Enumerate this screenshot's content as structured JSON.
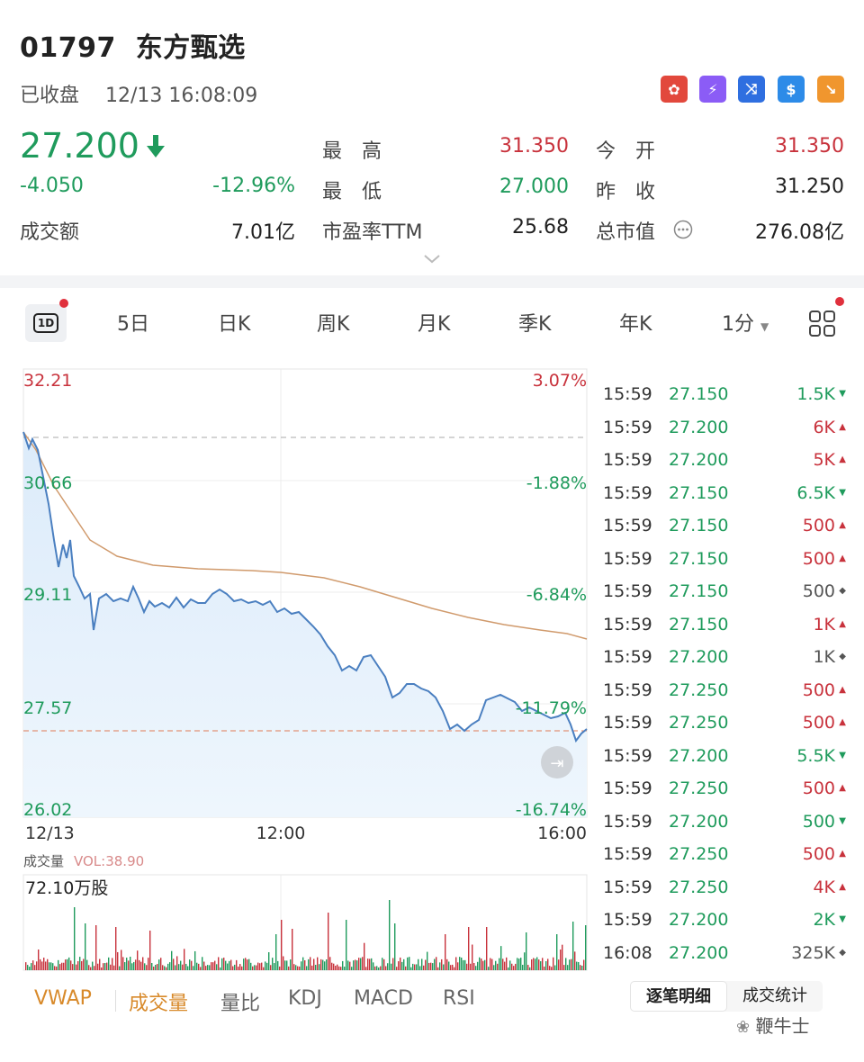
{
  "header": {
    "code": "01797",
    "name": "东方甄选",
    "status": "已收盘",
    "datetime": "12/13 16:08:09",
    "badges": [
      {
        "icon": "hk-flag-icon",
        "color": "#e2483c",
        "glyph": "✿"
      },
      {
        "icon": "level2-icon",
        "color": "#8b5cf6",
        "glyph": "⚡"
      },
      {
        "icon": "shuffle-icon",
        "color": "#2f6fe0",
        "glyph": "⤨"
      },
      {
        "icon": "dollar-icon",
        "color": "#2d8be8",
        "glyph": "$"
      },
      {
        "icon": "trend-down-icon",
        "color": "#f0962e",
        "glyph": "↘"
      }
    ]
  },
  "quote": {
    "price": "27.200",
    "change": "-4.050",
    "change_pct": "-12.96%",
    "turnover_label": "成交额",
    "turnover": "7.01亿",
    "high_label": "最　高",
    "high": "31.350",
    "low_label": "最　低",
    "low": "27.000",
    "pe_label": "市盈率TTM",
    "pe": "25.68",
    "open_label": "今　开",
    "open": "31.350",
    "prev_close_label": "昨　收",
    "prev_close": "31.250",
    "mcap_label": "总市值",
    "mcap": "276.08亿"
  },
  "tabs": [
    "5日",
    "日K",
    "周K",
    "月K",
    "季K",
    "年K",
    "1分"
  ],
  "tab_1d": "1D",
  "chart": {
    "left_ticks": [
      "32.21",
      "30.66",
      "29.11",
      "27.57",
      "26.02"
    ],
    "right_ticks": [
      "3.07%",
      "-1.88%",
      "-6.84%",
      "-11.79%",
      "-16.74%"
    ],
    "time_ticks": [
      "12/13",
      "12:00",
      "16:00"
    ],
    "volume_title": "成交量",
    "volume_label": "VOL:38.90",
    "volume_max": "72.10万股"
  },
  "ticks": [
    {
      "time": "15:59",
      "price": "27.150",
      "vol": "1.5K",
      "dir": "down"
    },
    {
      "time": "15:59",
      "price": "27.200",
      "vol": "6K",
      "dir": "up"
    },
    {
      "time": "15:59",
      "price": "27.200",
      "vol": "5K",
      "dir": "up"
    },
    {
      "time": "15:59",
      "price": "27.150",
      "vol": "6.5K",
      "dir": "down"
    },
    {
      "time": "15:59",
      "price": "27.150",
      "vol": "500",
      "dir": "up"
    },
    {
      "time": "15:59",
      "price": "27.150",
      "vol": "500",
      "dir": "up"
    },
    {
      "time": "15:59",
      "price": "27.150",
      "vol": "500",
      "dir": "neutral"
    },
    {
      "time": "15:59",
      "price": "27.150",
      "vol": "1K",
      "dir": "up"
    },
    {
      "time": "15:59",
      "price": "27.200",
      "vol": "1K",
      "dir": "neutral"
    },
    {
      "time": "15:59",
      "price": "27.250",
      "vol": "500",
      "dir": "up"
    },
    {
      "time": "15:59",
      "price": "27.250",
      "vol": "500",
      "dir": "up"
    },
    {
      "time": "15:59",
      "price": "27.200",
      "vol": "5.5K",
      "dir": "down"
    },
    {
      "time": "15:59",
      "price": "27.250",
      "vol": "500",
      "dir": "up"
    },
    {
      "time": "15:59",
      "price": "27.200",
      "vol": "500",
      "dir": "down"
    },
    {
      "time": "15:59",
      "price": "27.250",
      "vol": "500",
      "dir": "up"
    },
    {
      "time": "15:59",
      "price": "27.250",
      "vol": "4K",
      "dir": "up"
    },
    {
      "time": "15:59",
      "price": "27.200",
      "vol": "2K",
      "dir": "down"
    },
    {
      "time": "16:08",
      "price": "27.200",
      "vol": "325K",
      "dir": "neutral"
    }
  ],
  "indicators": [
    "VWAP",
    "成交量",
    "量比",
    "KDJ",
    "MACD",
    "RSI"
  ],
  "detail_tabs": [
    "逐笔明细",
    "成交统计"
  ],
  "watermark": "鞭牛士",
  "colors": {
    "up": "#c8323c",
    "down": "#1f9b5c",
    "price_line": "#4a7fc0",
    "avg_line": "#d09a6c"
  }
}
